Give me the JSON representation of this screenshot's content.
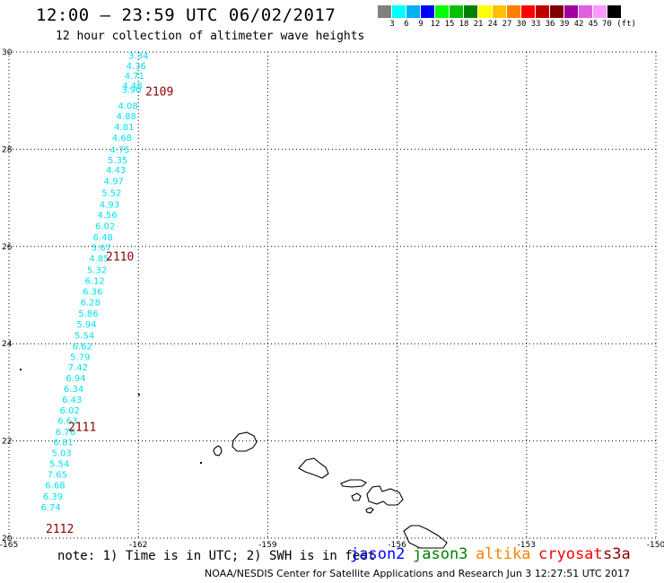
{
  "title": "12:00 — 23:59 UTC 06/02/2017",
  "subtitle": "12 hour collection of altimeter wave heights",
  "legend": {
    "colors": [
      "#808080",
      "#00ffff",
      "#00b0f0",
      "#0000ff",
      "#00ff00",
      "#00c000",
      "#008000",
      "#ffff00",
      "#ffc000",
      "#ff8000",
      "#ff0000",
      "#c00000",
      "#800000",
      "#a000a0",
      "#e060e0",
      "#ff99ff",
      "#000000"
    ],
    "labels": [
      "3",
      "6",
      "9",
      "12",
      "15",
      "18",
      "21",
      "24",
      "27",
      "30",
      "33",
      "36",
      "39",
      "42",
      "45",
      "70 (ft)"
    ]
  },
  "map": {
    "x_ticks": [
      "-165",
      "-162",
      "-159",
      "-156",
      "-153",
      "-150"
    ],
    "y_ticks": [
      "20",
      "22",
      "24",
      "26",
      "28",
      "30"
    ]
  },
  "passes": [
    {
      "label": "2109",
      "lat": 29.2
    },
    {
      "label": "2110",
      "lat": 25.8
    },
    {
      "label": "2111",
      "lat": 22.3
    },
    {
      "label": "2112",
      "lat": 20.2
    }
  ],
  "wave_heights": [
    {
      "lat": 29.94,
      "lon": -162.0,
      "v": "3.34"
    },
    {
      "lat": 29.72,
      "lon": -162.05,
      "v": "4.36"
    },
    {
      "lat": 29.52,
      "lon": -162.09,
      "v": "4.71"
    },
    {
      "lat": 29.32,
      "lon": -162.14,
      "v": "4.48"
    },
    {
      "lat": 29.23,
      "lon": -162.16,
      "v": "3.90"
    },
    {
      "lat": 28.9,
      "lon": -162.24,
      "v": "4.08"
    },
    {
      "lat": 28.69,
      "lon": -162.28,
      "v": "4.88"
    },
    {
      "lat": 28.47,
      "lon": -162.33,
      "v": "4.81"
    },
    {
      "lat": 28.25,
      "lon": -162.38,
      "v": "4.68"
    },
    {
      "lat": 28.0,
      "lon": -162.43,
      "v": "4.75"
    },
    {
      "lat": 27.79,
      "lon": -162.48,
      "v": "5.35"
    },
    {
      "lat": 27.58,
      "lon": -162.52,
      "v": "4.43"
    },
    {
      "lat": 27.35,
      "lon": -162.57,
      "v": "4.97"
    },
    {
      "lat": 27.11,
      "lon": -162.62,
      "v": "5.52"
    },
    {
      "lat": 26.87,
      "lon": -162.67,
      "v": "4.93"
    },
    {
      "lat": 26.66,
      "lon": -162.72,
      "v": "4.56"
    },
    {
      "lat": 26.43,
      "lon": -162.77,
      "v": "6.02"
    },
    {
      "lat": 26.2,
      "lon": -162.82,
      "v": "6.48"
    },
    {
      "lat": 25.99,
      "lon": -162.86,
      "v": "5.67"
    },
    {
      "lat": 25.77,
      "lon": -162.91,
      "v": "4.85"
    },
    {
      "lat": 25.53,
      "lon": -162.96,
      "v": "5.32"
    },
    {
      "lat": 25.3,
      "lon": -163.01,
      "v": "6.12"
    },
    {
      "lat": 25.08,
      "lon": -163.06,
      "v": "6.36"
    },
    {
      "lat": 24.86,
      "lon": -163.11,
      "v": "6.28"
    },
    {
      "lat": 24.63,
      "lon": -163.16,
      "v": "5.86"
    },
    {
      "lat": 24.41,
      "lon": -163.2,
      "v": "5.94"
    },
    {
      "lat": 24.18,
      "lon": -163.25,
      "v": "5.54"
    },
    {
      "lat": 23.96,
      "lon": -163.3,
      "v": "6.62"
    },
    {
      "lat": 23.74,
      "lon": -163.35,
      "v": "5.79"
    },
    {
      "lat": 23.52,
      "lon": -163.4,
      "v": "7.42"
    },
    {
      "lat": 23.3,
      "lon": -163.45,
      "v": "6.94"
    },
    {
      "lat": 23.08,
      "lon": -163.5,
      "v": "6.34"
    },
    {
      "lat": 22.86,
      "lon": -163.54,
      "v": "6.43"
    },
    {
      "lat": 22.64,
      "lon": -163.59,
      "v": "6.02"
    },
    {
      "lat": 22.43,
      "lon": -163.64,
      "v": "6.63"
    },
    {
      "lat": 22.2,
      "lon": -163.69,
      "v": "6.76"
    },
    {
      "lat": 21.98,
      "lon": -163.74,
      "v": "6.81"
    },
    {
      "lat": 21.76,
      "lon": -163.78,
      "v": "5.03"
    },
    {
      "lat": 21.54,
      "lon": -163.83,
      "v": "5.54"
    },
    {
      "lat": 21.32,
      "lon": -163.88,
      "v": "7.65"
    },
    {
      "lat": 21.1,
      "lon": -163.93,
      "v": "6.68"
    },
    {
      "lat": 20.87,
      "lon": -163.98,
      "v": "6.39"
    },
    {
      "lat": 20.65,
      "lon": -164.03,
      "v": "6.74"
    }
  ],
  "note": "note: 1) Time is in UTC; 2) SWH is in feet",
  "satellites": [
    {
      "name": "jason2",
      "color": "#0000ff"
    },
    {
      "name": "jason3",
      "color": "#008000"
    },
    {
      "name": "altika",
      "color": "#ff8000"
    },
    {
      "name": "cryosat",
      "color": "#ff0000"
    },
    {
      "name": "s3a",
      "color": "#8b0000"
    }
  ],
  "footer": "NOAA/NESDIS Center for Satellite Applications and Research   Jun  3 12:27:51 UTC 2017"
}
